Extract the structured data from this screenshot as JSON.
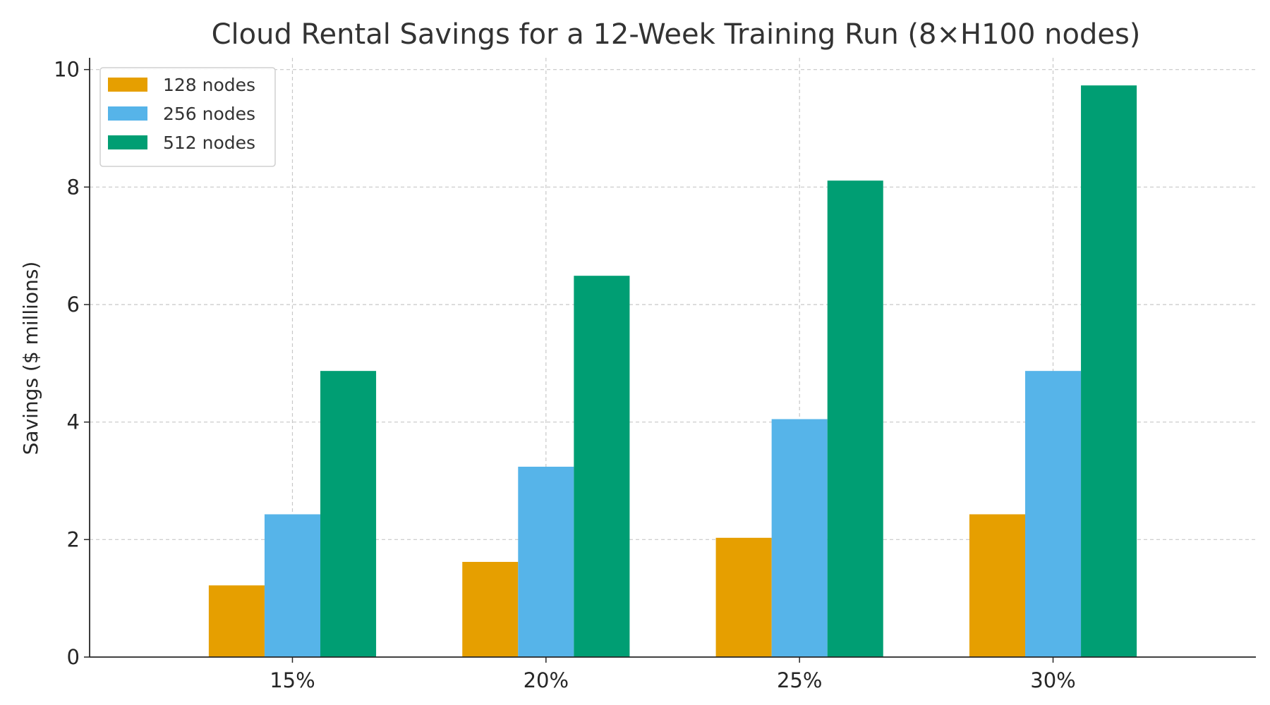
{
  "chart_data": {
    "type": "bar",
    "title": "Cloud Rental Savings for a 12-Week Training Run (8×H100 nodes)",
    "xlabel": "",
    "ylabel": "Savings ($ millions)",
    "categories": [
      "15%",
      "20%",
      "25%",
      "30%"
    ],
    "series": [
      {
        "name": "128 nodes",
        "color": "#E69F00",
        "values": [
          1.22,
          1.62,
          2.03,
          2.43
        ]
      },
      {
        "name": "256 nodes",
        "color": "#56B4E9",
        "values": [
          2.43,
          3.24,
          4.05,
          4.87
        ]
      },
      {
        "name": "512 nodes",
        "color": "#009E73",
        "values": [
          4.87,
          6.49,
          8.11,
          9.73
        ]
      }
    ],
    "ylim": [
      0,
      10.2
    ],
    "yticks": [
      0,
      2,
      4,
      6,
      8,
      10
    ],
    "grid": true,
    "legend_position": "top-left"
  }
}
